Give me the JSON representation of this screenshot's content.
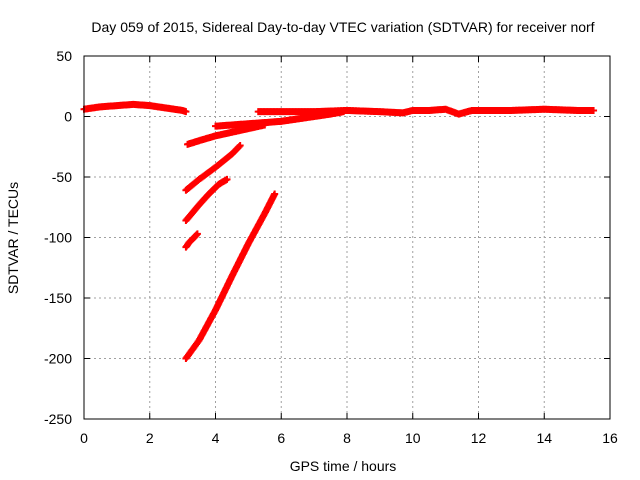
{
  "chart_data": {
    "type": "scatter",
    "title": "Day 059 of 2015, Sidereal Day-to-day VTEC variation (SDTVAR) for receiver norf",
    "xlabel": "GPS time / hours",
    "ylabel": "SDTVAR / TECUs",
    "xlim": [
      0,
      16
    ],
    "ylim": [
      -250,
      50
    ],
    "xticks": [
      0,
      2,
      4,
      6,
      8,
      10,
      12,
      14,
      16
    ],
    "yticks": [
      -250,
      -200,
      -150,
      -100,
      -50,
      0,
      50
    ],
    "grid": true,
    "marker_color": "#ff0000",
    "series": [
      {
        "x": [
          0.0,
          0.5,
          1.0,
          1.5,
          2.0,
          2.5,
          3.0,
          3.1
        ],
        "y": [
          6,
          8,
          9,
          10,
          9,
          7,
          5,
          4
        ]
      },
      {
        "x": [
          3.15,
          3.5,
          4.0,
          4.5,
          5.0,
          5.5
        ],
        "y": [
          -23,
          -20,
          -16,
          -13,
          -10,
          -7
        ]
      },
      {
        "x": [
          4.0,
          4.5,
          5.0,
          5.5,
          6.0,
          6.5,
          7.0,
          7.5,
          7.9
        ],
        "y": [
          -8,
          -7,
          -6,
          -5,
          -4,
          -2,
          0,
          2,
          4
        ]
      },
      {
        "x": [
          3.1,
          3.5,
          4.0,
          4.5,
          4.75
        ],
        "y": [
          -61,
          -52,
          -42,
          -31,
          -24
        ]
      },
      {
        "x": [
          3.1,
          3.5,
          3.8,
          4.1,
          4.35
        ],
        "y": [
          -86,
          -73,
          -64,
          -56,
          -52
        ]
      },
      {
        "x": [
          3.1,
          3.2,
          3.35,
          3.45
        ],
        "y": [
          -108,
          -104,
          -100,
          -97
        ]
      },
      {
        "x": [
          3.1,
          3.5,
          4.0,
          4.5,
          5.0,
          5.5,
          5.8
        ],
        "y": [
          -200,
          -185,
          -160,
          -132,
          -105,
          -80,
          -64
        ]
      },
      {
        "x": [
          5.3,
          6.0,
          7.0,
          8.0,
          9.0,
          9.7,
          10.0,
          10.5,
          11.0,
          11.4,
          11.8,
          12.0,
          13.0,
          14.0,
          15.0,
          15.5
        ],
        "y": [
          4,
          4,
          4,
          5,
          4,
          3,
          5,
          5,
          6,
          2,
          5,
          5,
          5,
          6,
          5,
          5
        ]
      }
    ]
  }
}
